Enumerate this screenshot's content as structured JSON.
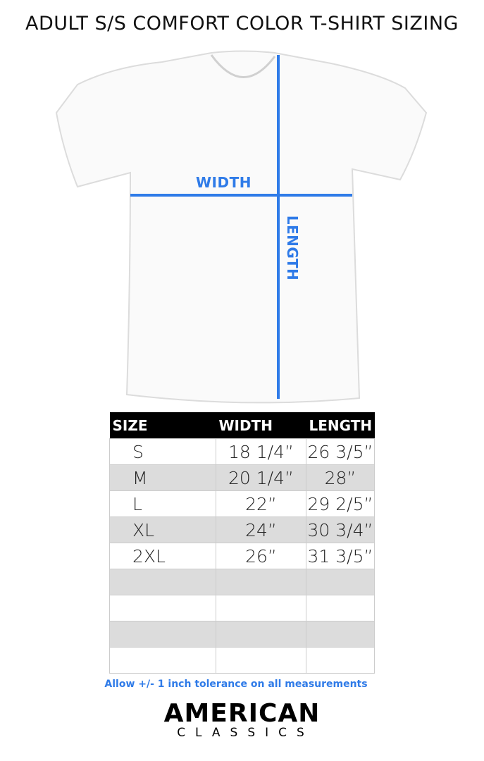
{
  "title": "ADULT S/S COMFORT COLOR T-SHIRT SIZING",
  "diagram": {
    "width_label": "WIDTH",
    "length_label": "LENGTH",
    "line_color": "#2f7be8"
  },
  "table": {
    "headers": [
      "SIZE",
      "WIDTH",
      "LENGTH"
    ],
    "rows": [
      [
        "S",
        "18 1/4”",
        "26 3/5”"
      ],
      [
        "M",
        "20 1/4”",
        "28”"
      ],
      [
        "L",
        "22”",
        "29 2/5”"
      ],
      [
        "XL",
        "24”",
        "30 3/4”"
      ],
      [
        "2XL",
        "26”",
        "31 3/5”"
      ],
      [
        "",
        "",
        ""
      ],
      [
        "",
        "",
        ""
      ],
      [
        "",
        "",
        ""
      ],
      [
        "",
        "",
        ""
      ]
    ]
  },
  "note": "Allow +/- 1 inch tolerance on all measurements",
  "logo": {
    "line1": "AMERICAN",
    "line2": "CLASSICS"
  }
}
